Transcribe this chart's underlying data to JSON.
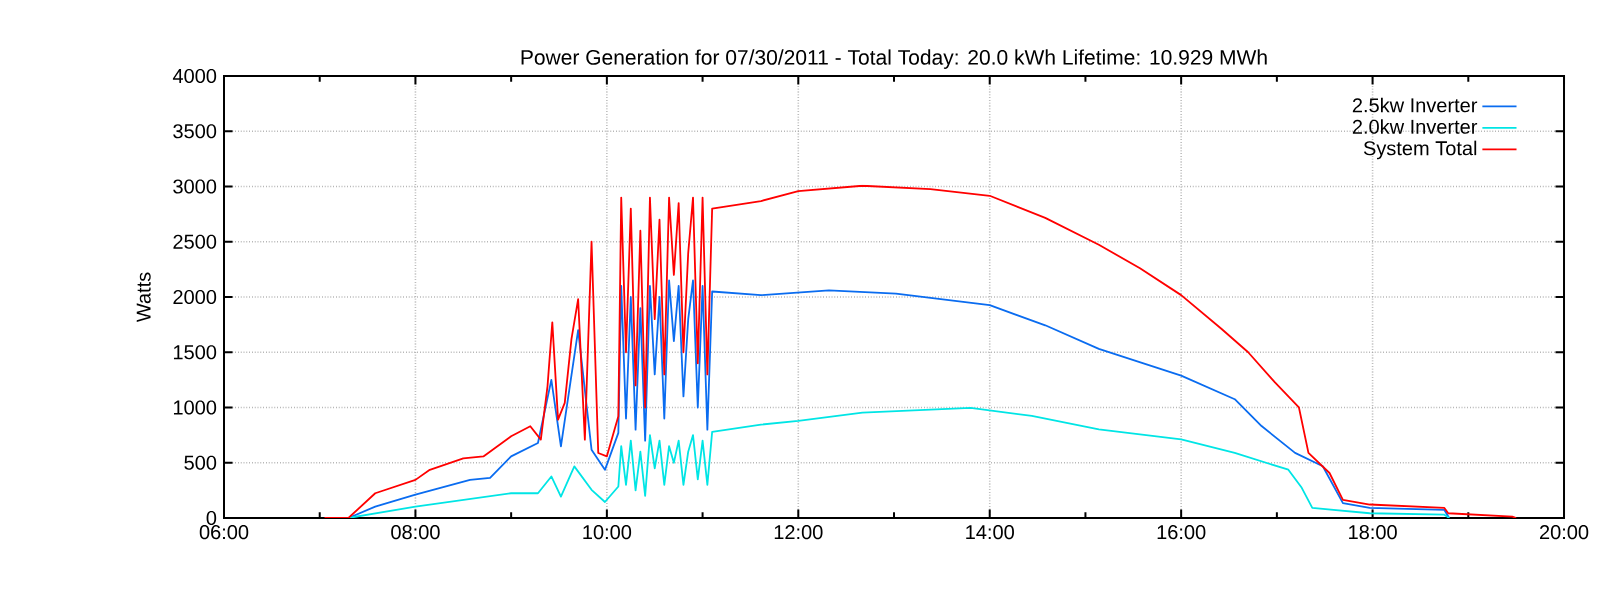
{
  "chart_data": {
    "type": "line",
    "title": "Power Generation for 07/30/2011 - Total Today: 20.0 kWh   Lifetime: 10.929 MWh",
    "ylabel": "Watts",
    "xlim": [
      6,
      20
    ],
    "ylim": [
      0,
      4000
    ],
    "xticks": [
      {
        "value": 6,
        "label": "06:00"
      },
      {
        "value": 8,
        "label": "08:00"
      },
      {
        "value": 10,
        "label": "10:00"
      },
      {
        "value": 12,
        "label": "12:00"
      },
      {
        "value": 14,
        "label": "14:00"
      },
      {
        "value": 16,
        "label": "16:00"
      },
      {
        "value": 18,
        "label": "18:00"
      },
      {
        "value": 20,
        "label": "20:00"
      }
    ],
    "yticks": [
      0,
      500,
      1000,
      1500,
      2000,
      2500,
      3000,
      3500,
      4000
    ],
    "grid": true,
    "legend": "top right",
    "marker": "none",
    "line_style": "solid",
    "series": [
      {
        "name": "2.5kw Inverter",
        "color": "#0a6cf0",
        "x": [
          7.3,
          7.58,
          8.0,
          8.57,
          8.78,
          9.0,
          9.28,
          9.42,
          9.52,
          9.7,
          9.84,
          9.98,
          10.12,
          10.15,
          10.2,
          10.25,
          10.3,
          10.35,
          10.4,
          10.45,
          10.5,
          10.55,
          10.6,
          10.65,
          10.7,
          10.75,
          10.8,
          10.85,
          10.9,
          10.95,
          11.0,
          11.05,
          11.1,
          11.61,
          12.32,
          13.02,
          14.0,
          14.58,
          15.14,
          16.0,
          16.56,
          16.84,
          17.19,
          17.48,
          17.69,
          17.97,
          18.75,
          18.8
        ],
        "values": [
          0,
          103,
          212,
          345,
          364,
          558,
          679,
          1250,
          648,
          1700,
          618,
          436,
          770,
          2100,
          900,
          2000,
          800,
          1900,
          700,
          2100,
          1300,
          2000,
          900,
          2150,
          1600,
          2100,
          1100,
          1800,
          2150,
          1000,
          2100,
          800,
          2050,
          2017,
          2060,
          2030,
          1926,
          1744,
          1531,
          1288,
          1075,
          832,
          589,
          468,
          134,
          91,
          73,
          0
        ]
      },
      {
        "name": "2.0kw Inverter",
        "color": "#00e5e5",
        "x": [
          7.3,
          8.0,
          9.0,
          9.28,
          9.42,
          9.52,
          9.66,
          9.84,
          9.98,
          10.12,
          10.15,
          10.2,
          10.25,
          10.3,
          10.35,
          10.4,
          10.45,
          10.5,
          10.55,
          10.6,
          10.65,
          10.7,
          10.75,
          10.8,
          10.85,
          10.9,
          10.95,
          11.0,
          11.05,
          11.1,
          11.61,
          12.0,
          12.67,
          13.8,
          14.44,
          15.14,
          16.0,
          16.56,
          17.12,
          17.26,
          17.37,
          17.97,
          18.75,
          18.8
        ],
        "values": [
          0,
          103,
          224,
          224,
          376,
          194,
          467,
          255,
          145,
          285,
          650,
          300,
          700,
          250,
          600,
          200,
          750,
          450,
          700,
          300,
          650,
          500,
          700,
          300,
          600,
          750,
          350,
          700,
          300,
          780,
          845,
          879,
          954,
          997,
          924,
          802,
          711,
          589,
          437,
          273,
          91,
          43,
          30,
          0
        ]
      },
      {
        "name": "System Total",
        "color": "#ff0000",
        "x": [
          7.05,
          7.3,
          7.58,
          8.0,
          8.15,
          8.5,
          8.71,
          9.0,
          9.2,
          9.31,
          9.38,
          9.43,
          9.49,
          9.56,
          9.63,
          9.7,
          9.77,
          9.84,
          9.91,
          10.0,
          10.12,
          10.15,
          10.2,
          10.25,
          10.3,
          10.35,
          10.4,
          10.45,
          10.5,
          10.55,
          10.6,
          10.65,
          10.7,
          10.75,
          10.8,
          10.85,
          10.9,
          10.95,
          11.0,
          11.05,
          11.1,
          11.61,
          12.0,
          12.67,
          13.38,
          14.0,
          14.58,
          15.14,
          15.57,
          16.0,
          16.42,
          16.7,
          16.98,
          17.23,
          17.33,
          17.55,
          17.69,
          17.97,
          18.75,
          18.79,
          19.46,
          19.5
        ],
        "values": [
          0,
          0,
          224,
          345,
          436,
          540,
          557,
          740,
          830,
          709,
          1194,
          1770,
          890,
          1042,
          1618,
          1980,
          709,
          2500,
          588,
          558,
          921,
          2900,
          1500,
          2800,
          1200,
          2600,
          1000,
          2900,
          1800,
          2700,
          1300,
          2900,
          2200,
          2850,
          1500,
          2400,
          2900,
          1400,
          2900,
          1300,
          2800,
          2868,
          2959,
          3007,
          2977,
          2916,
          2716,
          2473,
          2260,
          2017,
          1713,
          1500,
          1227,
          1002,
          589,
          407,
          164,
          122,
          91,
          43,
          12,
          0
        ]
      }
    ]
  }
}
